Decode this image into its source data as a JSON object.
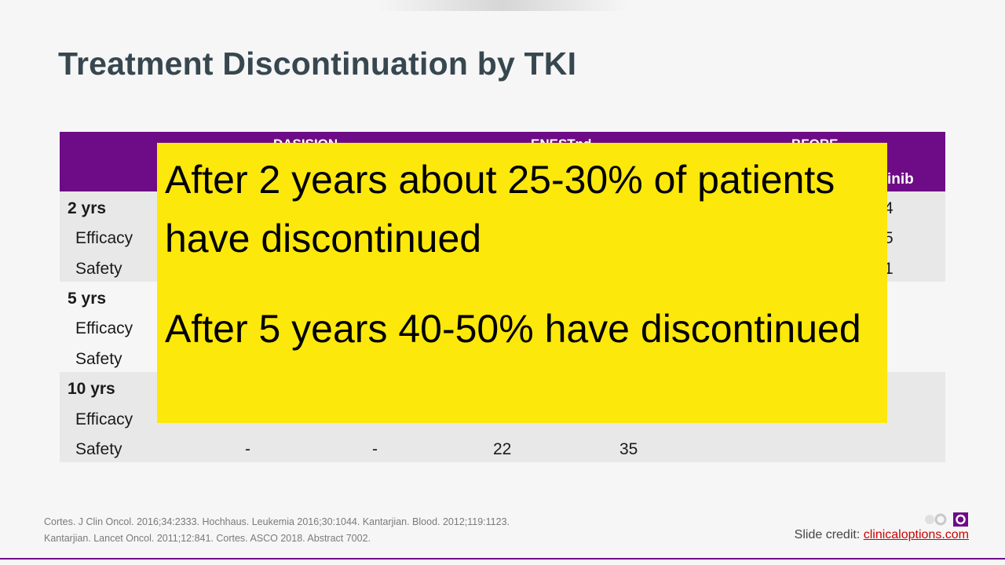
{
  "slide": {
    "title": "Treatment Discontinuation by TKI",
    "table": {
      "trial_headers": [
        "DASISION",
        "ENESTnd",
        "BFORE"
      ],
      "partial_subheader": "inib",
      "rows": [
        {
          "label": "2 yrs",
          "type": "group",
          "values": [
            "",
            "",
            "",
            "",
            "",
            "4"
          ]
        },
        {
          "label": "Efficacy",
          "type": "sub",
          "values": [
            "",
            "",
            "",
            "",
            "",
            "5"
          ]
        },
        {
          "label": "Safety",
          "type": "sub",
          "values": [
            "",
            "",
            "",
            "",
            "",
            "1"
          ]
        },
        {
          "label": "5 yrs",
          "type": "group",
          "values": []
        },
        {
          "label": "Efficacy",
          "type": "sub",
          "values": []
        },
        {
          "label": "Safety",
          "type": "sub",
          "values": []
        },
        {
          "label": "10 yrs",
          "type": "group",
          "values": []
        },
        {
          "label": "Efficacy",
          "type": "sub",
          "values": []
        },
        {
          "label": "Safety",
          "type": "sub",
          "values": [
            "-",
            "-",
            "22",
            "35"
          ]
        }
      ]
    },
    "overlay": {
      "line1": "After 2 years about 25-30% of patients have discontinued",
      "line2": "After 5 years 40-50% have discontinued",
      "color": "#fce80a"
    },
    "citation": {
      "line1": "Cortes. J Clin Oncol. 2016;34:2333. Hochhaus. Leukemia 2016;30:1044. Kantarjian. Blood. 2012;119:1123.",
      "line2": "Kantarjian. Lancet Oncol. 2011;12:841. Cortes. ASCO 2018. Abstract 7002."
    },
    "credit": {
      "prefix": "Slide credit:",
      "link": "clinicaloptions.com"
    },
    "colors": {
      "header": "#6d0c86",
      "title": "#37474f",
      "band": "#e8e8e8",
      "link": "#cc0000"
    },
    "logo_icon": "cco-logo-icon"
  }
}
